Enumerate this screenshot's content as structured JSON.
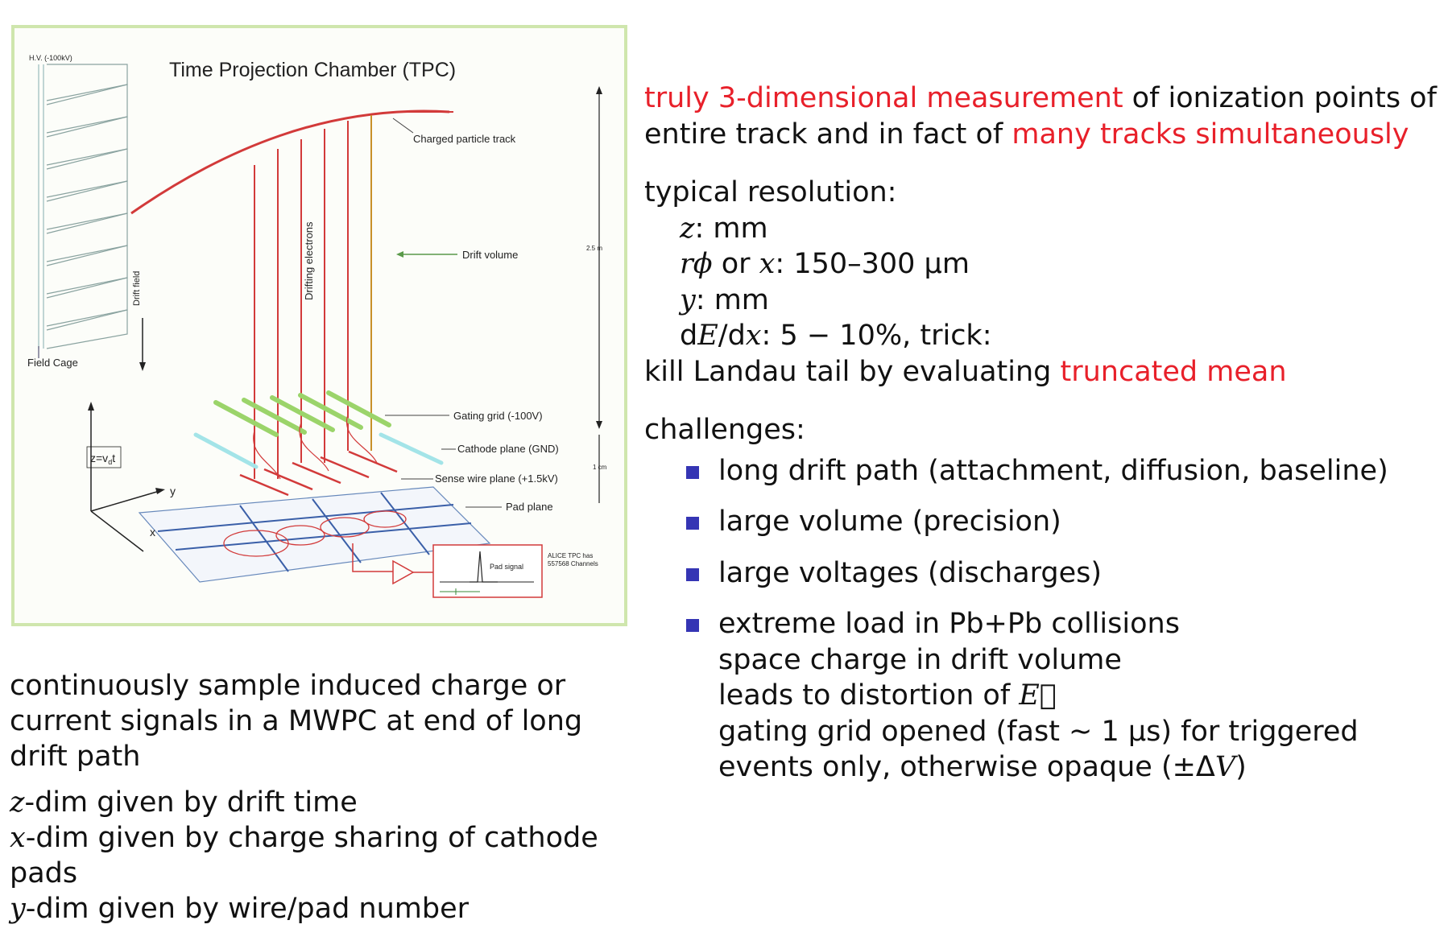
{
  "figure": {
    "title": "Time Projection Chamber (TPC)",
    "labels": {
      "hv": "H.V. (-100kV)",
      "track": "Charged particle track",
      "drifting_electrons": "Drifting electrons",
      "drift_volume": "Drift volume",
      "drift_field": "Drift field",
      "field_cage": "Field Cage",
      "length": "2.5 m",
      "gating_grid": "Gating grid (-100V)",
      "cathode_plane": "Cathode plane (GND)",
      "sense_wire": "Sense wire plane (+1.5kV)",
      "pad_plane": "Pad plane",
      "pad_signal": "Pad signal",
      "one_cm": "1 cm",
      "alice_line1": "ALICE TPC has",
      "alice_line2": "557568 Channels",
      "z_axis": "z=v",
      "z_sub": "d",
      "z_t": "t",
      "y_axis": "y",
      "x_axis": "x"
    }
  },
  "left_text": {
    "para1": [
      "continuously sample induced charge or",
      "current signals in a MWPC at end of long",
      "drift path"
    ],
    "z_var": "z",
    "z_line": "-dim given by drift time",
    "x_var": "x",
    "x_line1": "-dim given by charge sharing of cathode",
    "x_line2": "pads",
    "y_var": "y",
    "y_line": "-dim given by wire/pad number"
  },
  "right_text": {
    "intro_red1": "truly 3-dimensional measurement",
    "intro_black1": " of ionization points of",
    "intro_black2": "entire track and in fact of ",
    "intro_red2": "many tracks simultaneously",
    "resolution_heading": "typical resolution:",
    "res_z_var": "z",
    "res_z_val": ": mm",
    "res_rphi_var": "rϕ",
    "res_rphi_or": " or ",
    "res_rphi_x": "x",
    "res_rphi_val": ": 150–300 μm",
    "res_y_var": "y",
    "res_y_val": ": mm",
    "res_dedx_d1": "d",
    "res_dedx_E": "E",
    "res_dedx_slash": "/d",
    "res_dedx_x": "x",
    "res_dedx_val": ": 5 − 10%, trick:",
    "landau_black": "kill Landau tail by evaluating ",
    "landau_red": "truncated mean",
    "challenges_heading": "challenges:",
    "challenges": [
      {
        "text": "long drift path (attachment, diffusion, baseline)"
      },
      {
        "text": "large volume (precision)"
      },
      {
        "text": "large voltages (discharges)"
      }
    ],
    "last_challenge_1": "extreme load in Pb+Pb collisions",
    "last_challenge_2": "space charge in drift volume",
    "last_challenge_3": "leads to distortion of ",
    "last_challenge_3_var": "E⃗",
    "last_challenge_4": "gating grid opened (fast ∼ 1 μs) for triggered",
    "last_challenge_5": "events only, otherwise opaque (±Δ",
    "last_challenge_5_var": "V",
    "last_challenge_5_end": ")"
  }
}
